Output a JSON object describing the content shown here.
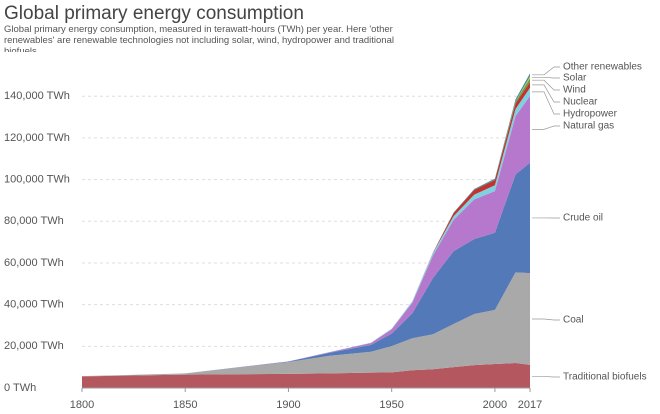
{
  "chart_data": {
    "type": "stacked_area",
    "title": "Global primary energy consumption",
    "subtitle": "Global primary energy consumption, measured in terawatt-hours (TWh) per year. Here 'other renewables' are renewable technologies not including solar, wind, hydropower and traditional biofuels.",
    "x": [
      1800,
      1850,
      1900,
      1920,
      1940,
      1950,
      1960,
      1970,
      1980,
      1990,
      2000,
      2010,
      2017
    ],
    "series": [
      {
        "name": "Traditional biofuels",
        "color": "#b5575e",
        "label_color": "#b0303a",
        "values": [
          5600,
          6400,
          6800,
          7000,
          7400,
          7500,
          8500,
          9000,
          10000,
          11000,
          11500,
          12000,
          11100
        ]
      },
      {
        "name": "Coal",
        "color": "#a9a9a9",
        "label_color": "#777777",
        "values": [
          100,
          600,
          5700,
          8500,
          10000,
          12600,
          15400,
          16800,
          20700,
          24500,
          26000,
          43500,
          44000
        ]
      },
      {
        "name": "Crude oil",
        "color": "#5479b8",
        "label_color": "#3a64a8",
        "values": [
          0,
          0,
          200,
          1400,
          3300,
          6000,
          12000,
          27000,
          35000,
          36000,
          37000,
          47000,
          53000
        ]
      },
      {
        "name": "Natural gas",
        "color": "#b678cc",
        "label_color": "#a04ca8",
        "values": [
          0,
          0,
          60,
          300,
          900,
          2100,
          5000,
          10800,
          15000,
          19000,
          20000,
          28000,
          32000
        ]
      },
      {
        "name": "Hydropower",
        "color": "#7fd0e0",
        "label_color": "#4fb3cc",
        "values": [
          0,
          0,
          0,
          100,
          200,
          300,
          700,
          1200,
          1800,
          2300,
          2800,
          3400,
          4000
        ]
      },
      {
        "name": "Nuclear",
        "color": "#c4332b",
        "label_color": "#c4332b",
        "values": [
          0,
          0,
          0,
          0,
          0,
          0,
          0,
          200,
          1500,
          2300,
          2500,
          2700,
          2700
        ]
      },
      {
        "name": "Wind",
        "color": "#5e9e4c",
        "label_color": "#5e9e4c",
        "values": [
          0,
          0,
          0,
          0,
          0,
          0,
          0,
          0,
          0,
          0,
          90,
          900,
          1800
        ]
      },
      {
        "name": "Solar",
        "color": "#e8b53a",
        "label_color": "#e8b53a",
        "values": [
          0,
          0,
          0,
          0,
          0,
          0,
          0,
          0,
          0,
          0,
          0,
          90,
          1000
        ]
      },
      {
        "name": "Other renewables",
        "color": "#3a8fa5",
        "label_color": "#3a8fa5",
        "values": [
          0,
          0,
          0,
          0,
          0,
          0,
          0,
          0,
          200,
          400,
          600,
          1000,
          1400
        ]
      }
    ],
    "xlim": [
      1800,
      2017
    ],
    "xticks": [
      1800,
      1850,
      1900,
      1950,
      2000,
      2017
    ],
    "ylim": [
      0,
      155000
    ],
    "yticks": [
      {
        "value": 0,
        "label": "0 TWh"
      },
      {
        "value": 20000,
        "label": "20,000 TWh"
      },
      {
        "value": 40000,
        "label": "40,000 TWh"
      },
      {
        "value": 60000,
        "label": "60,000 TWh"
      },
      {
        "value": 80000,
        "label": "80,000 TWh"
      },
      {
        "value": 100000,
        "label": "100,000 TWh"
      },
      {
        "value": 120000,
        "label": "120,000 TWh"
      },
      {
        "value": 140000,
        "label": "140,000 TWh"
      }
    ],
    "grid": true
  }
}
